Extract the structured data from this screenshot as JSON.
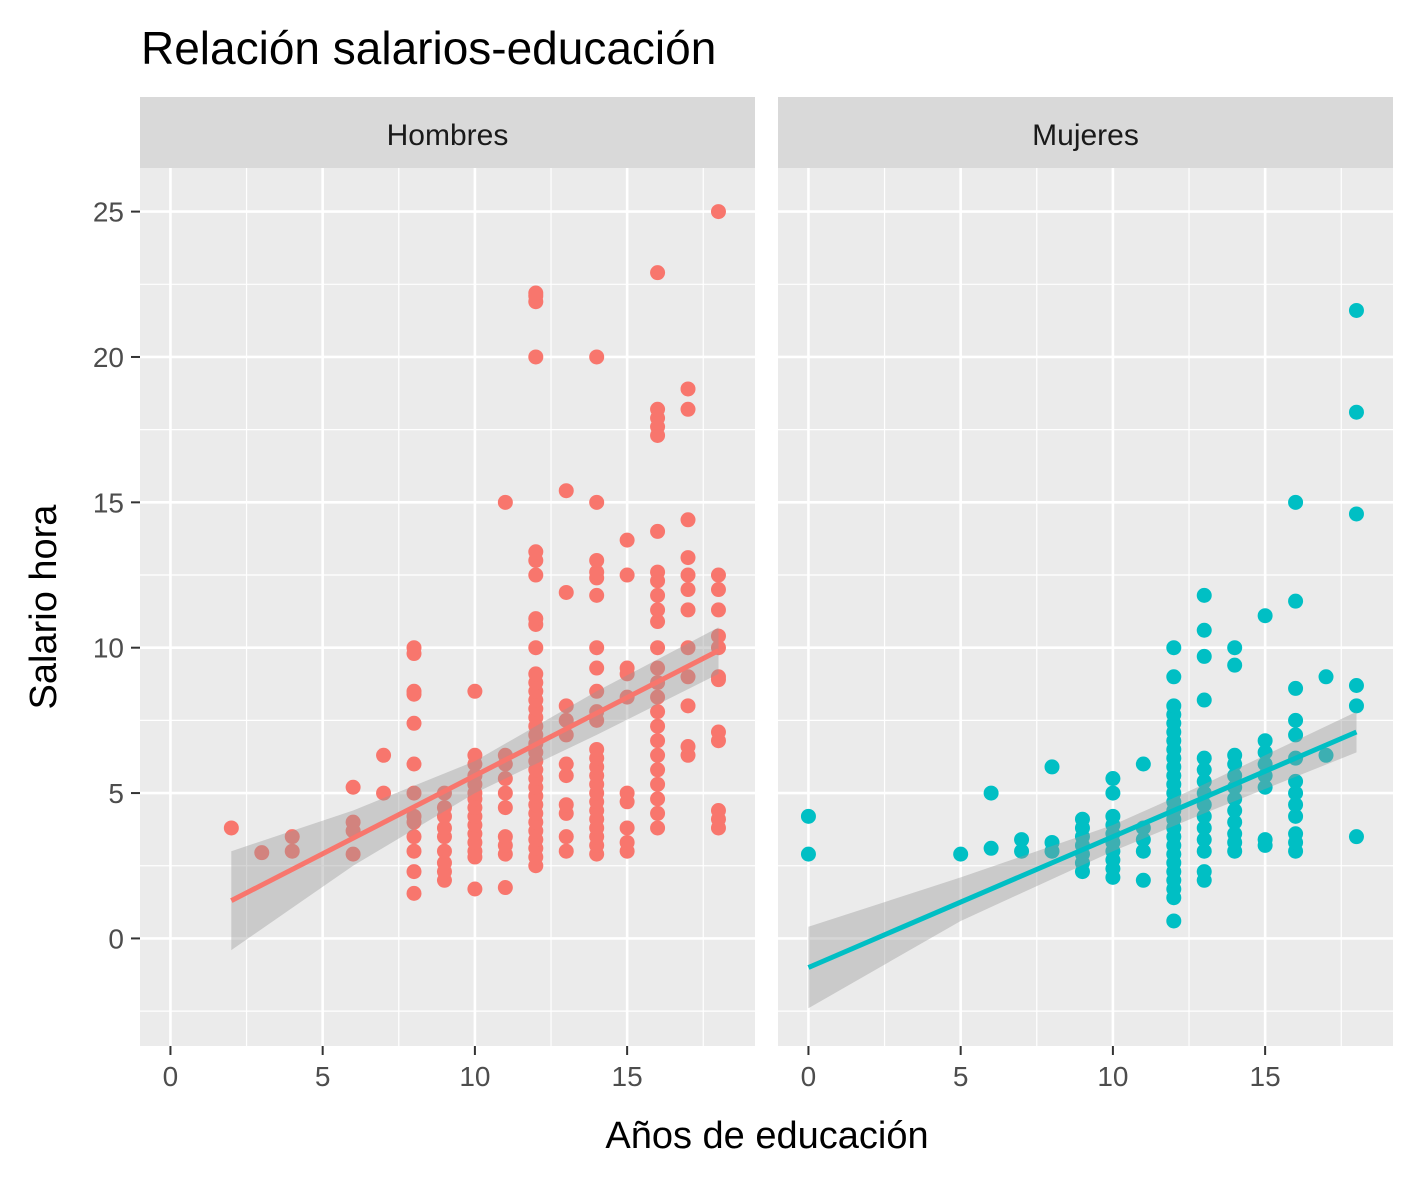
{
  "chart_data": {
    "type": "scatter",
    "title": "Relación salarios-educación",
    "xlabel": "Años de educación",
    "ylabel": "Salario hora",
    "xlim": [
      -1,
      19.2
    ],
    "ylim": [
      -3.7,
      26.5
    ],
    "x_ticks": [
      0,
      5,
      10,
      15
    ],
    "y_ticks": [
      0,
      5,
      10,
      15,
      20,
      25
    ],
    "grid": true,
    "legend": "none",
    "facets": [
      {
        "label": "Hombres",
        "color": "#F8766D",
        "fit_line": {
          "x": [
            2,
            18
          ],
          "y": [
            1.3,
            9.9
          ]
        },
        "confidence_band": {
          "x": [
            2,
            6,
            10,
            14,
            18
          ],
          "lower": [
            -0.4,
            2.5,
            5.0,
            7.0,
            9.1
          ],
          "upper": [
            3.0,
            4.4,
            6.1,
            8.5,
            10.7
          ]
        },
        "points": [
          [
            2,
            3.8
          ],
          [
            3,
            2.95
          ],
          [
            4,
            3.0
          ],
          [
            4,
            3.5
          ],
          [
            6,
            2.9
          ],
          [
            6,
            3.7
          ],
          [
            6,
            4.0
          ],
          [
            6,
            5.2
          ],
          [
            7,
            5.0
          ],
          [
            7,
            6.3
          ],
          [
            8,
            1.55
          ],
          [
            8,
            2.3
          ],
          [
            8,
            3.0
          ],
          [
            8,
            3.5
          ],
          [
            8,
            4.0
          ],
          [
            8,
            4.2
          ],
          [
            8,
            5.0
          ],
          [
            8,
            6.0
          ],
          [
            8,
            7.4
          ],
          [
            8,
            8.4
          ],
          [
            8,
            8.5
          ],
          [
            8,
            9.8
          ],
          [
            8,
            10.0
          ],
          [
            9,
            2.0
          ],
          [
            9,
            2.3
          ],
          [
            9,
            2.6
          ],
          [
            9,
            3.0
          ],
          [
            9,
            3.5
          ],
          [
            9,
            3.8
          ],
          [
            9,
            4.2
          ],
          [
            9,
            4.5
          ],
          [
            9,
            5.0
          ],
          [
            10,
            1.7
          ],
          [
            10,
            2.8
          ],
          [
            10,
            3.0
          ],
          [
            10,
            3.3
          ],
          [
            10,
            3.6
          ],
          [
            10,
            3.9
          ],
          [
            10,
            4.2
          ],
          [
            10,
            4.5
          ],
          [
            10,
            4.8
          ],
          [
            10,
            5.0
          ],
          [
            10,
            5.3
          ],
          [
            10,
            5.6
          ],
          [
            10,
            6.0
          ],
          [
            10,
            6.3
          ],
          [
            10,
            8.5
          ],
          [
            11,
            1.75
          ],
          [
            11,
            2.9
          ],
          [
            11,
            3.2
          ],
          [
            11,
            3.5
          ],
          [
            11,
            4.5
          ],
          [
            11,
            5.0
          ],
          [
            11,
            5.5
          ],
          [
            11,
            6.0
          ],
          [
            11,
            6.3
          ],
          [
            11,
            15.0
          ],
          [
            12,
            2.5
          ],
          [
            12,
            2.8
          ],
          [
            12,
            3.1
          ],
          [
            12,
            3.4
          ],
          [
            12,
            3.7
          ],
          [
            12,
            4.0
          ],
          [
            12,
            4.3
          ],
          [
            12,
            4.6
          ],
          [
            12,
            4.9
          ],
          [
            12,
            5.2
          ],
          [
            12,
            5.5
          ],
          [
            12,
            5.8
          ],
          [
            12,
            6.1
          ],
          [
            12,
            6.4
          ],
          [
            12,
            6.7
          ],
          [
            12,
            7.0
          ],
          [
            12,
            7.3
          ],
          [
            12,
            7.6
          ],
          [
            12,
            7.9
          ],
          [
            12,
            8.2
          ],
          [
            12,
            8.5
          ],
          [
            12,
            8.8
          ],
          [
            12,
            9.1
          ],
          [
            12,
            10.0
          ],
          [
            12,
            10.8
          ],
          [
            12,
            11.0
          ],
          [
            12,
            12.5
          ],
          [
            12,
            13.0
          ],
          [
            12,
            13.3
          ],
          [
            12,
            20.0
          ],
          [
            12,
            21.9
          ],
          [
            12,
            22.1
          ],
          [
            12,
            22.2
          ],
          [
            13,
            3.0
          ],
          [
            13,
            3.5
          ],
          [
            13,
            4.3
          ],
          [
            13,
            4.6
          ],
          [
            13,
            5.6
          ],
          [
            13,
            6.0
          ],
          [
            13,
            7.0
          ],
          [
            13,
            7.5
          ],
          [
            13,
            8.0
          ],
          [
            13,
            11.9
          ],
          [
            13,
            15.4
          ],
          [
            14,
            2.9
          ],
          [
            14,
            3.2
          ],
          [
            14,
            3.5
          ],
          [
            14,
            3.8
          ],
          [
            14,
            4.1
          ],
          [
            14,
            4.4
          ],
          [
            14,
            4.7
          ],
          [
            14,
            5.0
          ],
          [
            14,
            5.3
          ],
          [
            14,
            5.6
          ],
          [
            14,
            5.9
          ],
          [
            14,
            6.2
          ],
          [
            14,
            6.5
          ],
          [
            14,
            7.5
          ],
          [
            14,
            7.8
          ],
          [
            14,
            8.5
          ],
          [
            14,
            9.3
          ],
          [
            14,
            10.0
          ],
          [
            14,
            11.8
          ],
          [
            14,
            12.4
          ],
          [
            14,
            12.6
          ],
          [
            14,
            13.0
          ],
          [
            14,
            15.0
          ],
          [
            14,
            20.0
          ],
          [
            15,
            3.0
          ],
          [
            15,
            3.3
          ],
          [
            15,
            3.8
          ],
          [
            15,
            4.7
          ],
          [
            15,
            5.0
          ],
          [
            15,
            8.3
          ],
          [
            15,
            9.1
          ],
          [
            15,
            9.3
          ],
          [
            15,
            12.5
          ],
          [
            15,
            13.7
          ],
          [
            16,
            3.8
          ],
          [
            16,
            4.3
          ],
          [
            16,
            4.8
          ],
          [
            16,
            5.3
          ],
          [
            16,
            5.8
          ],
          [
            16,
            6.3
          ],
          [
            16,
            6.8
          ],
          [
            16,
            7.3
          ],
          [
            16,
            7.8
          ],
          [
            16,
            8.3
          ],
          [
            16,
            8.8
          ],
          [
            16,
            9.3
          ],
          [
            16,
            10.0
          ],
          [
            16,
            10.9
          ],
          [
            16,
            11.3
          ],
          [
            16,
            11.8
          ],
          [
            16,
            12.3
          ],
          [
            16,
            12.6
          ],
          [
            16,
            14.0
          ],
          [
            16,
            17.3
          ],
          [
            16,
            17.6
          ],
          [
            16,
            17.9
          ],
          [
            16,
            18.2
          ],
          [
            16,
            22.9
          ],
          [
            17,
            6.3
          ],
          [
            17,
            6.6
          ],
          [
            17,
            8.0
          ],
          [
            17,
            9.0
          ],
          [
            17,
            10.0
          ],
          [
            17,
            11.3
          ],
          [
            17,
            12.0
          ],
          [
            17,
            12.5
          ],
          [
            17,
            13.1
          ],
          [
            17,
            14.4
          ],
          [
            17,
            18.2
          ],
          [
            17,
            18.9
          ],
          [
            18,
            3.8
          ],
          [
            18,
            4.1
          ],
          [
            18,
            4.4
          ],
          [
            18,
            6.8
          ],
          [
            18,
            7.1
          ],
          [
            18,
            8.9
          ],
          [
            18,
            9.0
          ],
          [
            18,
            10.0
          ],
          [
            18,
            10.4
          ],
          [
            18,
            11.3
          ],
          [
            18,
            12.0
          ],
          [
            18,
            12.5
          ],
          [
            18,
            25.0
          ]
        ]
      },
      {
        "label": "Mujeres",
        "color": "#00BFC4",
        "fit_line": {
          "x": [
            0,
            18
          ],
          "y": [
            -1.0,
            7.1
          ]
        },
        "confidence_band": {
          "x": [
            0,
            5,
            10,
            13,
            18
          ],
          "lower": [
            -2.4,
            0.6,
            3.0,
            4.3,
            6.4
          ],
          "upper": [
            0.4,
            2.1,
            3.9,
            5.3,
            7.8
          ]
        },
        "points": [
          [
            0,
            2.9
          ],
          [
            0,
            4.2
          ],
          [
            5,
            2.9
          ],
          [
            6,
            3.1
          ],
          [
            6,
            5.0
          ],
          [
            7,
            3.0
          ],
          [
            7,
            3.4
          ],
          [
            8,
            3.0
          ],
          [
            8,
            3.3
          ],
          [
            8,
            5.9
          ],
          [
            9,
            2.3
          ],
          [
            9,
            2.6
          ],
          [
            9,
            2.9
          ],
          [
            9,
            3.2
          ],
          [
            9,
            3.5
          ],
          [
            9,
            3.8
          ],
          [
            9,
            4.1
          ],
          [
            10,
            2.1
          ],
          [
            10,
            2.4
          ],
          [
            10,
            2.7
          ],
          [
            10,
            3.0
          ],
          [
            10,
            3.3
          ],
          [
            10,
            3.6
          ],
          [
            10,
            3.9
          ],
          [
            10,
            4.2
          ],
          [
            10,
            5.0
          ],
          [
            10,
            5.5
          ],
          [
            11,
            2.0
          ],
          [
            11,
            3.0
          ],
          [
            11,
            3.4
          ],
          [
            11,
            3.8
          ],
          [
            11,
            6.0
          ],
          [
            12,
            0.6
          ],
          [
            12,
            1.4
          ],
          [
            12,
            1.7
          ],
          [
            12,
            2.0
          ],
          [
            12,
            2.3
          ],
          [
            12,
            2.6
          ],
          [
            12,
            2.9
          ],
          [
            12,
            3.2
          ],
          [
            12,
            3.5
          ],
          [
            12,
            3.8
          ],
          [
            12,
            4.1
          ],
          [
            12,
            4.4
          ],
          [
            12,
            4.7
          ],
          [
            12,
            5.0
          ],
          [
            12,
            5.3
          ],
          [
            12,
            5.6
          ],
          [
            12,
            5.9
          ],
          [
            12,
            6.2
          ],
          [
            12,
            6.5
          ],
          [
            12,
            6.8
          ],
          [
            12,
            7.1
          ],
          [
            12,
            7.4
          ],
          [
            12,
            7.7
          ],
          [
            12,
            8.0
          ],
          [
            12,
            9.0
          ],
          [
            12,
            10.0
          ],
          [
            13,
            2.0
          ],
          [
            13,
            2.3
          ],
          [
            13,
            3.0
          ],
          [
            13,
            3.4
          ],
          [
            13,
            3.8
          ],
          [
            13,
            4.2
          ],
          [
            13,
            4.6
          ],
          [
            13,
            5.0
          ],
          [
            13,
            5.4
          ],
          [
            13,
            5.8
          ],
          [
            13,
            6.2
          ],
          [
            13,
            8.2
          ],
          [
            13,
            9.7
          ],
          [
            13,
            10.6
          ],
          [
            13,
            11.8
          ],
          [
            14,
            3.0
          ],
          [
            14,
            3.3
          ],
          [
            14,
            3.6
          ],
          [
            14,
            4.0
          ],
          [
            14,
            4.4
          ],
          [
            14,
            4.8
          ],
          [
            14,
            5.2
          ],
          [
            14,
            5.6
          ],
          [
            14,
            6.0
          ],
          [
            14,
            6.3
          ],
          [
            14,
            9.4
          ],
          [
            14,
            10.0
          ],
          [
            15,
            3.2
          ],
          [
            15,
            3.4
          ],
          [
            15,
            5.2
          ],
          [
            15,
            5.6
          ],
          [
            15,
            6.0
          ],
          [
            15,
            6.4
          ],
          [
            15,
            6.8
          ],
          [
            15,
            11.1
          ],
          [
            16,
            3.0
          ],
          [
            16,
            3.3
          ],
          [
            16,
            3.6
          ],
          [
            16,
            4.2
          ],
          [
            16,
            4.6
          ],
          [
            16,
            5.0
          ],
          [
            16,
            5.4
          ],
          [
            16,
            6.2
          ],
          [
            16,
            7.0
          ],
          [
            16,
            7.5
          ],
          [
            16,
            8.6
          ],
          [
            16,
            11.6
          ],
          [
            16,
            15.0
          ],
          [
            17,
            6.3
          ],
          [
            17,
            9.0
          ],
          [
            18,
            3.5
          ],
          [
            18,
            8.0
          ],
          [
            18,
            8.7
          ],
          [
            18,
            14.6
          ],
          [
            18,
            18.1
          ],
          [
            18,
            21.6
          ]
        ]
      }
    ]
  }
}
